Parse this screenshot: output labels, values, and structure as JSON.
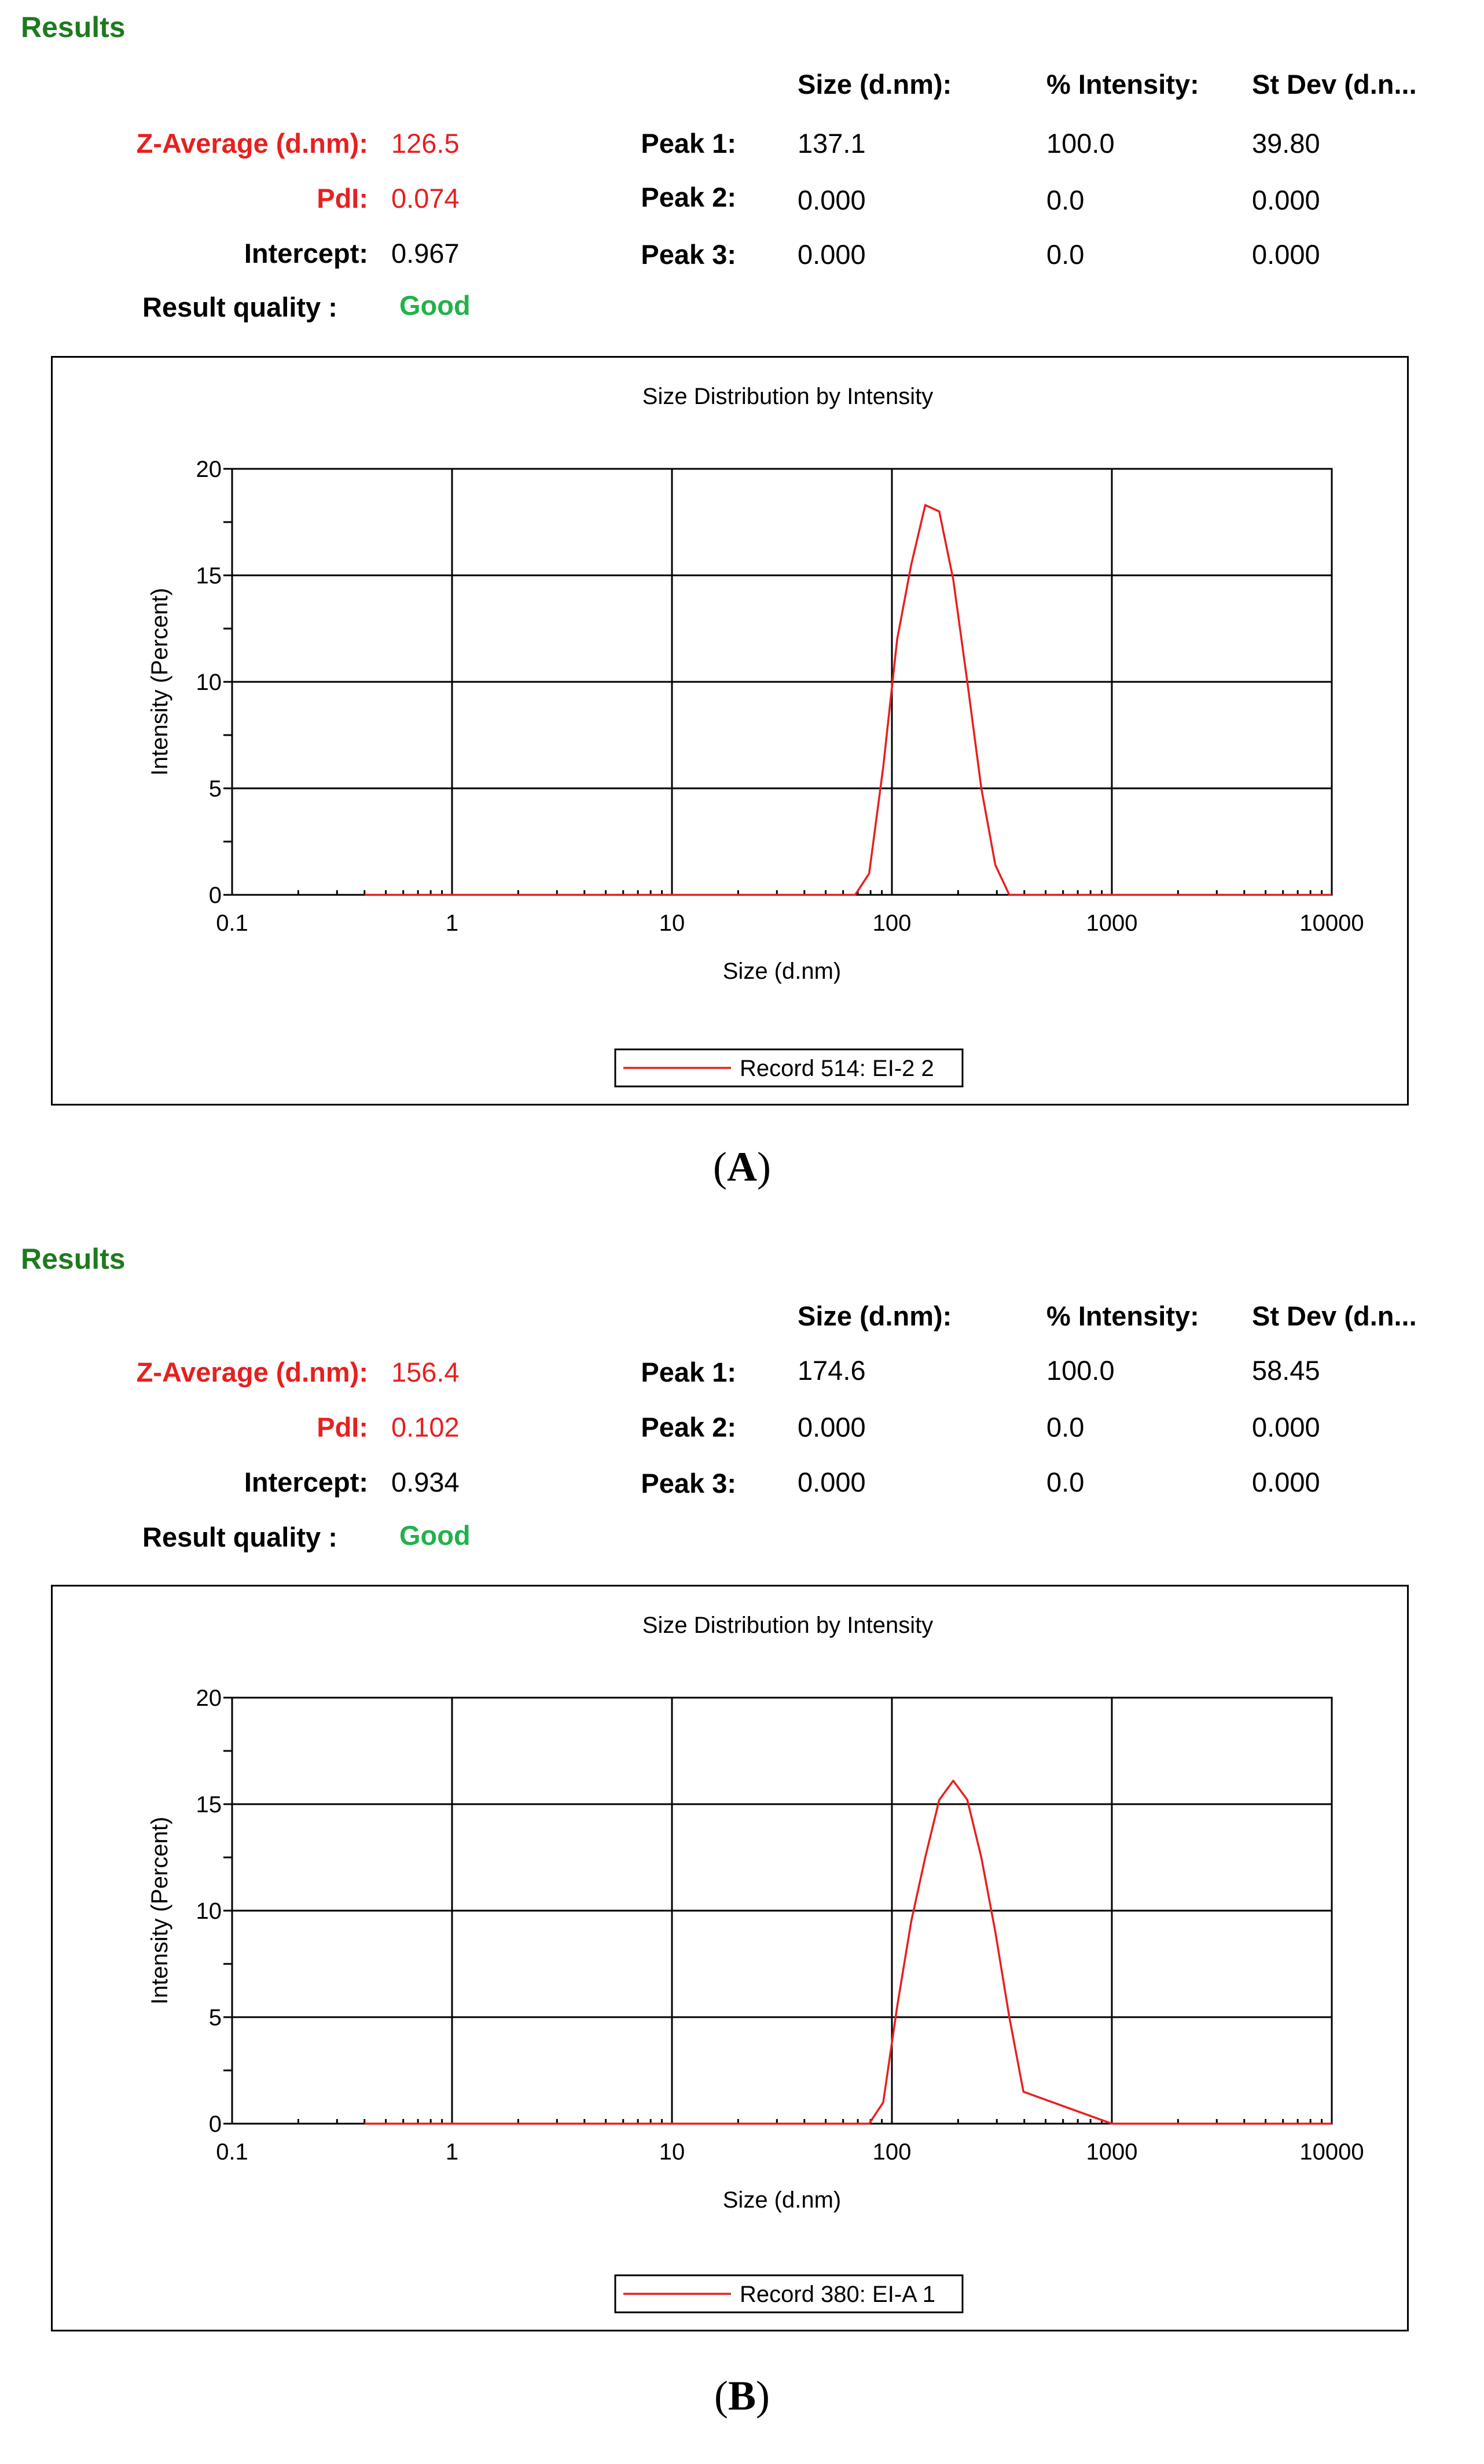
{
  "panels": [
    {
      "results_title": "Results",
      "headers": {
        "size": "Size (d.nm):",
        "intensity": "% Intensity:",
        "stdev": "St Dev (d.n..."
      },
      "z_average": {
        "label": "Z-Average (d.nm):",
        "value": "126.5"
      },
      "pdi": {
        "label": "PdI:",
        "value": "0.074"
      },
      "intercept": {
        "label": "Intercept:",
        "value": "0.967"
      },
      "quality": {
        "label": "Result quality :",
        "value": "Good"
      },
      "peaks": [
        {
          "label": "Peak 1:",
          "size": "137.1",
          "intensity": "100.0",
          "stdev": "39.80"
        },
        {
          "label": "Peak 2:",
          "size": "0.000",
          "intensity": "0.0",
          "stdev": "0.000"
        },
        {
          "label": "Peak 3:",
          "size": "0.000",
          "intensity": "0.0",
          "stdev": "0.000"
        }
      ],
      "panel_label": "A",
      "line_color": "#e62020"
    },
    {
      "results_title": "Results",
      "headers": {
        "size": "Size (d.nm):",
        "intensity": "% Intensity:",
        "stdev": "St Dev (d.n..."
      },
      "z_average": {
        "label": "Z-Average (d.nm):",
        "value": "156.4"
      },
      "pdi": {
        "label": "PdI:",
        "value": "0.102"
      },
      "intercept": {
        "label": "Intercept:",
        "value": "0.934"
      },
      "quality": {
        "label": "Result quality :",
        "value": "Good"
      },
      "peaks": [
        {
          "label": "Peak 1:",
          "size": "174.6",
          "intensity": "100.0",
          "stdev": "58.45"
        },
        {
          "label": "Peak 2:",
          "size": "0.000",
          "intensity": "0.0",
          "stdev": "0.000"
        },
        {
          "label": "Peak 3:",
          "size": "0.000",
          "intensity": "0.0",
          "stdev": "0.000"
        }
      ],
      "panel_label": "B",
      "line_color": "#e62020"
    }
  ],
  "chart_data": [
    {
      "type": "line",
      "title": "Size Distribution by Intensity",
      "xlabel": "Size (d.nm)",
      "ylabel": "Intensity (Percent)",
      "xscale": "log",
      "xlim": [
        0.1,
        10000
      ],
      "ylim": [
        0,
        20
      ],
      "xticks": [
        "0.1",
        "1",
        "10",
        "100",
        "1000",
        "10000"
      ],
      "yticks": [
        "0",
        "5",
        "10",
        "15",
        "20"
      ],
      "grid": true,
      "legend": "bottom-center",
      "series": [
        {
          "name": "Record 514: EI-2 2",
          "x": [
            0.4,
            1,
            10,
            50,
            68.1,
            78.8,
            91.3,
            105.7,
            122.4,
            141.8,
            164.2,
            190.1,
            220.2,
            255.0,
            295.3,
            341.9,
            1000,
            10000
          ],
          "y": [
            0,
            0,
            0,
            0,
            0.0,
            1.0,
            6.0,
            12.0,
            15.5,
            18.3,
            18.0,
            14.8,
            10.0,
            5.0,
            1.4,
            0.0,
            0,
            0
          ]
        }
      ]
    },
    {
      "type": "line",
      "title": "Size Distribution by Intensity",
      "xlabel": "Size (d.nm)",
      "ylabel": "Intensity (Percent)",
      "xscale": "log",
      "xlim": [
        0.1,
        10000
      ],
      "ylim": [
        0,
        20
      ],
      "xticks": [
        "0.1",
        "1",
        "10",
        "100",
        "1000",
        "10000"
      ],
      "yticks": [
        "0",
        "5",
        "10",
        "15",
        "20"
      ],
      "grid": true,
      "legend": "bottom-center",
      "series": [
        {
          "name": "Record 380: EI-A 1",
          "x": [
            0.4,
            1,
            10,
            50,
            78.8,
            91.3,
            105.7,
            122.4,
            141.8,
            164.2,
            190.1,
            220.2,
            255.0,
            295.3,
            341.9,
            396.1,
            1000,
            10000
          ],
          "y": [
            0,
            0,
            0,
            0,
            0.0,
            1.0,
            5.5,
            9.5,
            12.5,
            15.2,
            16.1,
            15.2,
            12.5,
            9.0,
            5.0,
            1.5,
            0,
            0
          ]
        }
      ]
    }
  ]
}
